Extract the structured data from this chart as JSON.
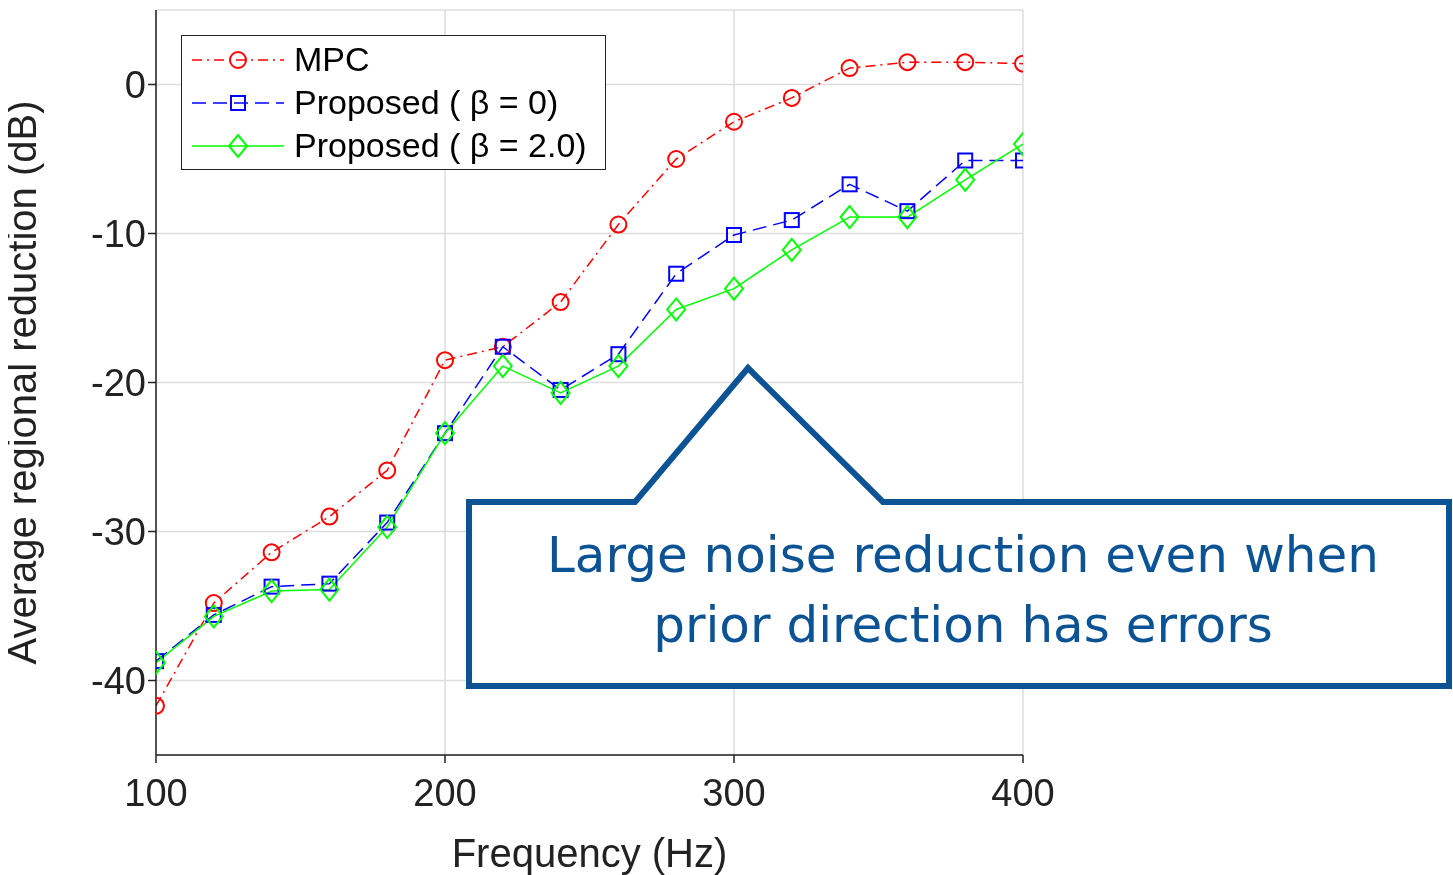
{
  "chart_data": {
    "type": "line",
    "xlabel": "Frequency (Hz)",
    "ylabel": "Average regional reduction (dB)",
    "x": [
      100,
      120,
      140,
      160,
      180,
      200,
      220,
      240,
      260,
      280,
      300,
      320,
      340,
      360,
      380,
      400
    ],
    "series": [
      {
        "name": "MPC",
        "color": "#ff0000",
        "marker": "circle",
        "line_style": "dashdot",
        "values": [
          -41.7,
          -34.8,
          -31.4,
          -29.0,
          -25.9,
          -18.5,
          -17.6,
          -14.6,
          -9.4,
          -5.0,
          -2.5,
          -0.9,
          1.1,
          1.5,
          1.5,
          1.4
        ]
      },
      {
        "name": "Proposed ( β = 0)",
        "color": "#0000ff",
        "marker": "square",
        "line_style": "dashed",
        "values": [
          -38.7,
          -35.6,
          -33.7,
          -33.5,
          -29.4,
          -23.4,
          -17.6,
          -20.5,
          -18.1,
          -12.7,
          -10.1,
          -9.1,
          -6.7,
          -8.5,
          -5.1,
          -5.1
        ]
      },
      {
        "name": "Proposed ( β = 2.0)",
        "color": "#00ff00",
        "marker": "diamond",
        "line_style": "solid",
        "values": [
          -38.8,
          -35.7,
          -34.0,
          -33.9,
          -29.7,
          -23.4,
          -18.9,
          -20.7,
          -18.9,
          -15.1,
          -13.7,
          -11.1,
          -8.9,
          -8.9,
          -6.4,
          -4.0
        ]
      }
    ],
    "xlim": [
      100,
      400
    ],
    "xticks": [
      100,
      200,
      300,
      400
    ],
    "ylim": [
      -45,
      5
    ],
    "yticks": [
      -40,
      -30,
      -20,
      -10,
      0
    ],
    "grid": true,
    "legend": "top left",
    "annotations": [
      "Large noise reduction even when prior direction has errors"
    ]
  }
}
